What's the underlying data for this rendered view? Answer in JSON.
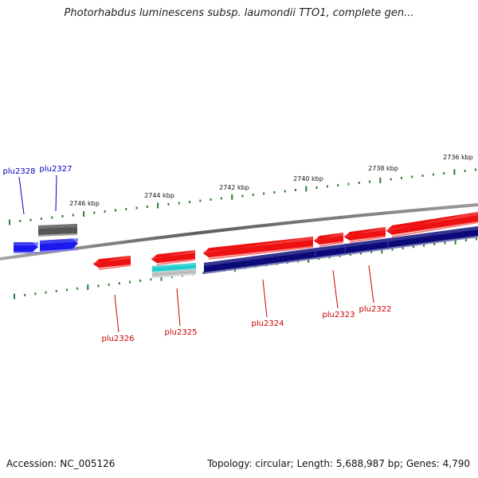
{
  "title": "Photorhabdus luminescens subsp. laumondii TTO1, complete gen...",
  "footer": {
    "accession": "Accession: NC_005126",
    "summary": "Topology: circular; Length: 5,688,987 bp; Genes: 4,790"
  },
  "colors": {
    "backbone": "#888888",
    "tick": "#2e7d32",
    "forward_red": "#ee1111",
    "reverse_blue": "#1a1aee",
    "navy": "#0a0a78",
    "gray": "#555555",
    "cyan": "#22cccc",
    "light_gray": "#bbbbbb",
    "label_red": "#cc0000",
    "label_blue": "#0000bb"
  },
  "kbp_labels": [
    "2746 kbp",
    "2744 kbp",
    "2742 kbp",
    "2740 kbp",
    "2738 kbp",
    "2736 kbp"
  ],
  "genes": [
    {
      "id": "plu2328",
      "label": "plu2328",
      "strand": "upper",
      "label_color": "label_blue"
    },
    {
      "id": "plu2327",
      "label": "plu2327",
      "strand": "upper",
      "label_color": "label_blue"
    },
    {
      "id": "plu2326",
      "label": "plu2326",
      "strand": "lower",
      "label_color": "label_red"
    },
    {
      "id": "plu2325",
      "label": "plu2325",
      "strand": "lower",
      "label_color": "label_red"
    },
    {
      "id": "plu2324",
      "label": "plu2324",
      "strand": "lower",
      "label_color": "label_red"
    },
    {
      "id": "plu2323",
      "label": "plu2323",
      "strand": "lower",
      "label_color": "label_red"
    },
    {
      "id": "plu2322",
      "label": "plu2322",
      "strand": "lower",
      "label_color": "label_red"
    }
  ]
}
